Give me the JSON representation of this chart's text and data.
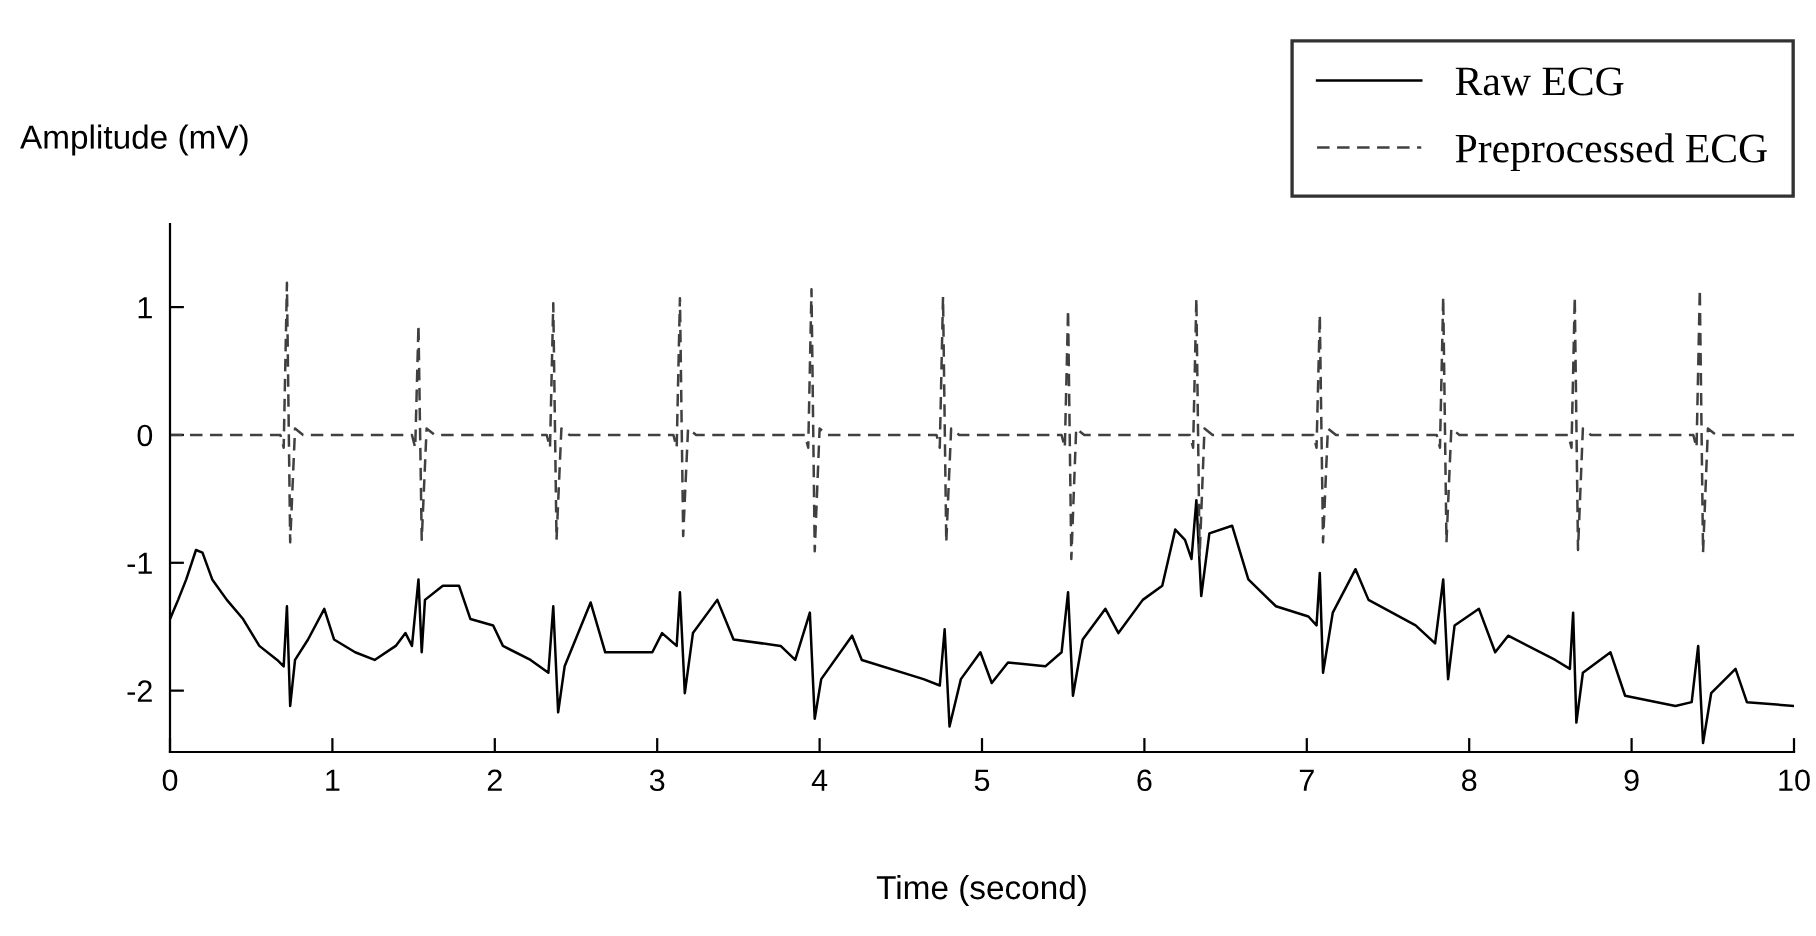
{
  "chart_data": {
    "type": "line",
    "xlabel": "Time (second)",
    "ylabel": "Amplitude (mV)",
    "xlim": [
      0,
      10
    ],
    "ylim": [
      -2.48,
      1.65
    ],
    "xticks": [
      0,
      1,
      2,
      3,
      4,
      5,
      6,
      7,
      8,
      9,
      10
    ],
    "yticks": [
      -2,
      -1,
      0,
      1
    ],
    "grid": false,
    "legend": "top right",
    "marker": "none",
    "series": [
      {
        "name": "Raw ECG",
        "color": "#000000",
        "line_style": "solid",
        "x": [
          0,
          0.05,
          0.1,
          0.16,
          0.2,
          0.26,
          0.35,
          0.45,
          0.55,
          0.66,
          0.7,
          0.72,
          0.74,
          0.77,
          0.85,
          0.95,
          1.01,
          1.14,
          1.26,
          1.39,
          1.45,
          1.49,
          1.53,
          1.55,
          1.57,
          1.68,
          1.78,
          1.85,
          1.99,
          2.05,
          2.22,
          2.33,
          2.36,
          2.39,
          2.43,
          2.59,
          2.68,
          2.97,
          3.03,
          3.12,
          3.14,
          3.17,
          3.22,
          3.37,
          3.47,
          3.76,
          3.85,
          3.94,
          3.97,
          4.01,
          4.2,
          4.26,
          4.64,
          4.74,
          4.77,
          4.8,
          4.87,
          4.99,
          5.06,
          5.16,
          5.39,
          5.49,
          5.53,
          5.56,
          5.62,
          5.76,
          5.84,
          5.99,
          6.11,
          6.19,
          6.25,
          6.29,
          6.32,
          6.35,
          6.4,
          6.54,
          6.64,
          6.81,
          7.01,
          7.06,
          7.08,
          7.1,
          7.16,
          7.3,
          7.38,
          7.67,
          7.79,
          7.84,
          7.87,
          7.91,
          8.06,
          8.16,
          8.24,
          8.53,
          8.62,
          8.64,
          8.66,
          8.7,
          8.87,
          8.96,
          9.27,
          9.37,
          9.41,
          9.44,
          9.49,
          9.64,
          9.71,
          10.0
        ],
        "values": [
          -1.44,
          -1.29,
          -1.13,
          -0.9,
          -0.92,
          -1.13,
          -1.29,
          -1.44,
          -1.65,
          -1.76,
          -1.81,
          -1.34,
          -2.12,
          -1.76,
          -1.6,
          -1.36,
          -1.6,
          -1.7,
          -1.76,
          -1.65,
          -1.55,
          -1.65,
          -1.13,
          -1.7,
          -1.29,
          -1.18,
          -1.18,
          -1.44,
          -1.49,
          -1.65,
          -1.76,
          -1.86,
          -1.34,
          -2.17,
          -1.81,
          -1.31,
          -1.7,
          -1.7,
          -1.55,
          -1.65,
          -1.23,
          -2.02,
          -1.55,
          -1.29,
          -1.6,
          -1.65,
          -1.76,
          -1.39,
          -2.22,
          -1.91,
          -1.57,
          -1.76,
          -1.91,
          -1.96,
          -1.52,
          -2.28,
          -1.91,
          -1.7,
          -1.94,
          -1.78,
          -1.81,
          -1.7,
          -1.23,
          -2.04,
          -1.6,
          -1.36,
          -1.55,
          -1.29,
          -1.18,
          -0.74,
          -0.82,
          -0.97,
          -0.51,
          -1.26,
          -0.77,
          -0.71,
          -1.13,
          -1.34,
          -1.42,
          -1.49,
          -1.08,
          -1.86,
          -1.39,
          -1.05,
          -1.29,
          -1.49,
          -1.63,
          -1.13,
          -1.91,
          -1.49,
          -1.36,
          -1.7,
          -1.57,
          -1.76,
          -1.83,
          -1.39,
          -2.25,
          -1.86,
          -1.7,
          -2.04,
          -2.12,
          -2.09,
          -1.65,
          -2.41,
          -2.02,
          -1.83,
          -2.09,
          -2.12
        ]
      },
      {
        "name": "Preprocessed ECG",
        "color": "#404040",
        "line_style": "dashed",
        "x": [
          0,
          0.68,
          0.7,
          0.72,
          0.74,
          0.77,
          0.82,
          1.49,
          1.51,
          1.53,
          1.55,
          1.58,
          1.63,
          2.32,
          2.34,
          2.36,
          2.38,
          2.41,
          2.46,
          3.1,
          3.12,
          3.14,
          3.16,
          3.19,
          3.24,
          3.91,
          3.93,
          3.95,
          3.97,
          4.0,
          4.05,
          4.72,
          4.74,
          4.76,
          4.78,
          4.81,
          4.86,
          5.49,
          5.51,
          5.53,
          5.55,
          5.58,
          5.63,
          6.28,
          6.3,
          6.32,
          6.34,
          6.37,
          6.42,
          7.04,
          7.06,
          7.08,
          7.1,
          7.13,
          7.18,
          7.8,
          7.82,
          7.84,
          7.86,
          7.89,
          7.94,
          8.61,
          8.63,
          8.65,
          8.67,
          8.7,
          8.75,
          9.38,
          9.4,
          9.42,
          9.44,
          9.47,
          9.52,
          10.0
        ],
        "values": [
          0,
          0,
          -0.1,
          1.19,
          -0.84,
          0.05,
          0,
          0,
          -0.1,
          0.86,
          -0.82,
          0.05,
          0,
          0,
          -0.1,
          1.03,
          -0.82,
          0.05,
          0,
          0,
          -0.1,
          1.07,
          -0.79,
          0.05,
          0,
          0,
          -0.1,
          1.14,
          -0.91,
          0.05,
          0,
          0,
          -0.1,
          1.08,
          -0.84,
          0.05,
          0,
          0,
          -0.1,
          0.98,
          -0.97,
          0.05,
          0,
          0,
          -0.1,
          1.07,
          -0.95,
          0.05,
          0,
          0,
          -0.1,
          0.94,
          -0.84,
          0.05,
          0,
          0,
          -0.1,
          1.08,
          -0.84,
          0.05,
          0,
          0,
          -0.1,
          1.08,
          -0.9,
          0.05,
          0,
          0,
          -0.1,
          1.14,
          -0.92,
          0.05,
          0,
          0
        ]
      }
    ]
  }
}
